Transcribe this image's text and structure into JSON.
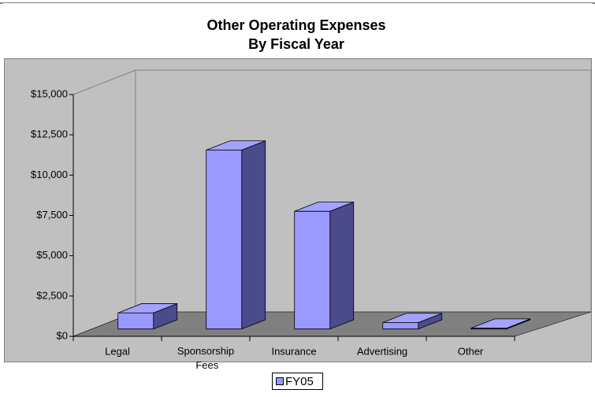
{
  "chart_data": {
    "type": "bar3d",
    "title": "Other Operating Expenses",
    "subtitle": "By Fiscal Year",
    "categories": [
      "Legal",
      "Sponsorship Fees",
      "Insurance",
      "Advertising",
      "Other"
    ],
    "series": [
      {
        "name": "FY05",
        "color": "#9999ff",
        "values": [
          1000,
          11100,
          7300,
          400,
          50
        ]
      }
    ],
    "ylim": [
      0,
      15000
    ],
    "yticks": [
      {
        "value": 0,
        "label": "$0"
      },
      {
        "value": 2500,
        "label": "$2,500"
      },
      {
        "value": 5000,
        "label": "$5,000"
      },
      {
        "value": 7500,
        "label": "$7,500"
      },
      {
        "value": 10000,
        "label": "$10,000"
      },
      {
        "value": 12500,
        "label": "$12,500"
      },
      {
        "value": 15000,
        "label": "$15,000"
      }
    ],
    "legend": "bottom"
  }
}
